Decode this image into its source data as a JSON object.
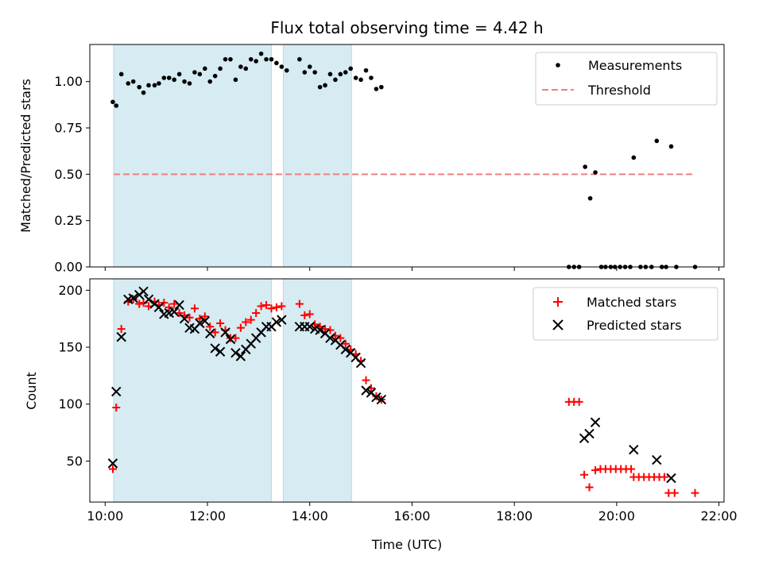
{
  "chart_data": [
    {
      "type": "scatter",
      "title": "Flux total observing time = 4.42 h",
      "xlabel": "",
      "ylabel": "Matched/Predicted stars",
      "xlim": [
        "09:42",
        "22:06"
      ],
      "ylim": [
        0.0,
        1.2
      ],
      "x_ticks": [
        "10:00",
        "12:00",
        "14:00",
        "16:00",
        "18:00",
        "20:00",
        "22:00"
      ],
      "y_ticks": [
        "0.00",
        "0.25",
        "0.50",
        "0.75",
        "1.00"
      ],
      "y_tick_values": [
        0.0,
        0.25,
        0.5,
        0.75,
        1.0
      ],
      "legend": {
        "position": "top-right",
        "entries": [
          "Measurements",
          "Threshold"
        ]
      },
      "shaded_intervals": [
        [
          "10:10",
          "13:15"
        ],
        [
          "13:29",
          "14:49"
        ]
      ],
      "series": [
        {
          "name": "Measurements",
          "color": "#000000",
          "points": [
            [
              "10:09",
              0.89
            ],
            [
              "10:13",
              0.87
            ],
            [
              "10:19",
              1.04
            ],
            [
              "10:27",
              0.99
            ],
            [
              "10:33",
              1.0
            ],
            [
              "10:40",
              0.97
            ],
            [
              "10:45",
              0.94
            ],
            [
              "10:51",
              0.98
            ],
            [
              "10:58",
              0.98
            ],
            [
              "11:03",
              0.99
            ],
            [
              "11:09",
              1.02
            ],
            [
              "11:15",
              1.02
            ],
            [
              "11:21",
              1.01
            ],
            [
              "11:27",
              1.04
            ],
            [
              "11:33",
              1.0
            ],
            [
              "11:39",
              0.99
            ],
            [
              "11:45",
              1.05
            ],
            [
              "11:51",
              1.04
            ],
            [
              "11:57",
              1.07
            ],
            [
              "12:03",
              1.0
            ],
            [
              "12:09",
              1.03
            ],
            [
              "12:15",
              1.07
            ],
            [
              "12:21",
              1.12
            ],
            [
              "12:27",
              1.12
            ],
            [
              "12:33",
              1.01
            ],
            [
              "12:39",
              1.08
            ],
            [
              "12:45",
              1.07
            ],
            [
              "12:51",
              1.12
            ],
            [
              "12:57",
              1.11
            ],
            [
              "13:03",
              1.15
            ],
            [
              "13:09",
              1.12
            ],
            [
              "13:15",
              1.12
            ],
            [
              "13:21",
              1.1
            ],
            [
              "13:27",
              1.08
            ],
            [
              "13:33",
              1.06
            ],
            [
              "13:48",
              1.12
            ],
            [
              "13:54",
              1.05
            ],
            [
              "14:00",
              1.08
            ],
            [
              "14:06",
              1.05
            ],
            [
              "14:12",
              0.97
            ],
            [
              "14:18",
              0.98
            ],
            [
              "14:24",
              1.04
            ],
            [
              "14:30",
              1.01
            ],
            [
              "14:36",
              1.04
            ],
            [
              "14:42",
              1.05
            ],
            [
              "14:48",
              1.07
            ],
            [
              "14:54",
              1.02
            ],
            [
              "15:00",
              1.01
            ],
            [
              "15:06",
              1.06
            ],
            [
              "15:12",
              1.02
            ],
            [
              "15:18",
              0.96
            ],
            [
              "15:24",
              0.97
            ],
            [
              "19:04",
              0.0
            ],
            [
              "19:10",
              0.0
            ],
            [
              "19:16",
              0.0
            ],
            [
              "19:23",
              0.54
            ],
            [
              "19:29",
              0.37
            ],
            [
              "19:35",
              0.51
            ],
            [
              "19:42",
              0.0
            ],
            [
              "19:47",
              0.0
            ],
            [
              "19:53",
              0.0
            ],
            [
              "19:58",
              0.0
            ],
            [
              "20:04",
              0.0
            ],
            [
              "20:10",
              0.0
            ],
            [
              "20:16",
              0.0
            ],
            [
              "20:20",
              0.59
            ],
            [
              "20:28",
              0.0
            ],
            [
              "20:34",
              0.0
            ],
            [
              "20:41",
              0.0
            ],
            [
              "20:47",
              0.68
            ],
            [
              "20:53",
              0.0
            ],
            [
              "20:58",
              0.0
            ],
            [
              "21:04",
              0.65
            ],
            [
              "21:10",
              0.0
            ],
            [
              "21:32",
              0.0
            ]
          ]
        },
        {
          "name": "Threshold",
          "type": "line",
          "style": "dashed",
          "color": "#f08080",
          "points": [
            [
              "10:10",
              0.5
            ],
            [
              "21:32",
              0.5
            ]
          ]
        }
      ]
    },
    {
      "type": "scatter",
      "title": "",
      "xlabel": "Time (UTC)",
      "ylabel": "Count",
      "xlim": [
        "09:42",
        "22:06"
      ],
      "ylim": [
        14,
        210
      ],
      "x_ticks": [
        "10:00",
        "12:00",
        "14:00",
        "16:00",
        "18:00",
        "20:00",
        "22:00"
      ],
      "y_ticks": [
        "50",
        "100",
        "150",
        "200"
      ],
      "y_tick_values": [
        50,
        100,
        150,
        200
      ],
      "legend": {
        "position": "top-right",
        "entries": [
          "Matched stars",
          "Predicted stars"
        ]
      },
      "shaded_intervals": [
        [
          "10:10",
          "13:15"
        ],
        [
          "13:29",
          "14:49"
        ]
      ],
      "series": [
        {
          "name": "Matched stars",
          "marker": "plus",
          "color": "#ff0000",
          "points": [
            [
              "10:09",
              43
            ],
            [
              "10:13",
              97
            ],
            [
              "10:19",
              166
            ],
            [
              "10:27",
              190
            ],
            [
              "10:33",
              192
            ],
            [
              "10:40",
              188
            ],
            [
              "10:45",
              189
            ],
            [
              "10:51",
              186
            ],
            [
              "10:58",
              190
            ],
            [
              "11:03",
              187
            ],
            [
              "11:09",
              189
            ],
            [
              "11:15",
              185
            ],
            [
              "11:21",
              188
            ],
            [
              "11:27",
              180
            ],
            [
              "11:33",
              178
            ],
            [
              "11:39",
              176
            ],
            [
              "11:45",
              184
            ],
            [
              "11:51",
              175
            ],
            [
              "11:57",
              177
            ],
            [
              "12:03",
              168
            ],
            [
              "12:09",
              163
            ],
            [
              "12:15",
              171
            ],
            [
              "12:21",
              165
            ],
            [
              "12:27",
              158
            ],
            [
              "12:33",
              158
            ],
            [
              "12:39",
              167
            ],
            [
              "12:45",
              172
            ],
            [
              "12:51",
              174
            ],
            [
              "12:57",
              180
            ],
            [
              "13:03",
              186
            ],
            [
              "13:09",
              187
            ],
            [
              "13:15",
              184
            ],
            [
              "13:21",
              185
            ],
            [
              "13:27",
              186
            ],
            [
              "13:48",
              188
            ],
            [
              "13:54",
              178
            ],
            [
              "14:00",
              179
            ],
            [
              "14:06",
              170
            ],
            [
              "14:12",
              168
            ],
            [
              "14:18",
              166
            ],
            [
              "14:24",
              165
            ],
            [
              "14:30",
              160
            ],
            [
              "14:36",
              158
            ],
            [
              "14:42",
              153
            ],
            [
              "14:48",
              148
            ],
            [
              "14:54",
              144
            ],
            [
              "15:00",
              138
            ],
            [
              "15:06",
              121
            ],
            [
              "15:12",
              114
            ],
            [
              "15:18",
              107
            ],
            [
              "15:24",
              104
            ],
            [
              "19:04",
              102
            ],
            [
              "19:10",
              102
            ],
            [
              "19:16",
              102
            ],
            [
              "19:22",
              38
            ],
            [
              "19:28",
              27
            ],
            [
              "19:35",
              42
            ],
            [
              "19:41",
              43
            ],
            [
              "19:47",
              43
            ],
            [
              "19:53",
              43
            ],
            [
              "19:59",
              43
            ],
            [
              "20:05",
              43
            ],
            [
              "20:11",
              43
            ],
            [
              "20:17",
              43
            ],
            [
              "20:20",
              36
            ],
            [
              "20:26",
              36
            ],
            [
              "20:32",
              36
            ],
            [
              "20:38",
              36
            ],
            [
              "20:44",
              36
            ],
            [
              "20:50",
              36
            ],
            [
              "20:56",
              36
            ],
            [
              "21:01",
              22
            ],
            [
              "21:08",
              22
            ],
            [
              "21:32",
              22
            ]
          ]
        },
        {
          "name": "Predicted stars",
          "marker": "x",
          "color": "#000000",
          "points": [
            [
              "10:09",
              48
            ],
            [
              "10:13",
              111
            ],
            [
              "10:19",
              159
            ],
            [
              "10:27",
              192
            ],
            [
              "10:33",
              193
            ],
            [
              "10:40",
              196
            ],
            [
              "10:45",
              199
            ],
            [
              "10:51",
              192
            ],
            [
              "10:58",
              188
            ],
            [
              "11:03",
              185
            ],
            [
              "11:09",
              179
            ],
            [
              "11:15",
              180
            ],
            [
              "11:21",
              181
            ],
            [
              "11:27",
              187
            ],
            [
              "11:33",
              175
            ],
            [
              "11:39",
              167
            ],
            [
              "11:45",
              166
            ],
            [
              "11:51",
              171
            ],
            [
              "11:57",
              173
            ],
            [
              "12:03",
              162
            ],
            [
              "12:09",
              149
            ],
            [
              "12:15",
              146
            ],
            [
              "12:21",
              163
            ],
            [
              "12:27",
              157
            ],
            [
              "12:33",
              145
            ],
            [
              "12:39",
              142
            ],
            [
              "12:45",
              148
            ],
            [
              "12:51",
              153
            ],
            [
              "12:57",
              158
            ],
            [
              "13:03",
              163
            ],
            [
              "13:09",
              168
            ],
            [
              "13:15",
              168
            ],
            [
              "13:21",
              172
            ],
            [
              "13:27",
              174
            ],
            [
              "13:48",
              168
            ],
            [
              "13:54",
              168
            ],
            [
              "14:00",
              168
            ],
            [
              "14:06",
              166
            ],
            [
              "14:12",
              165
            ],
            [
              "14:18",
              162
            ],
            [
              "14:24",
              158
            ],
            [
              "14:30",
              156
            ],
            [
              "14:36",
              152
            ],
            [
              "14:42",
              148
            ],
            [
              "14:48",
              145
            ],
            [
              "14:54",
              141
            ],
            [
              "15:00",
              136
            ],
            [
              "15:06",
              112
            ],
            [
              "15:12",
              110
            ],
            [
              "15:18",
              106
            ],
            [
              "15:24",
              104
            ],
            [
              "19:22",
              70
            ],
            [
              "19:28",
              74
            ],
            [
              "19:35",
              84
            ],
            [
              "20:20",
              60
            ],
            [
              "20:47",
              51
            ],
            [
              "21:04",
              35
            ]
          ]
        }
      ]
    }
  ]
}
